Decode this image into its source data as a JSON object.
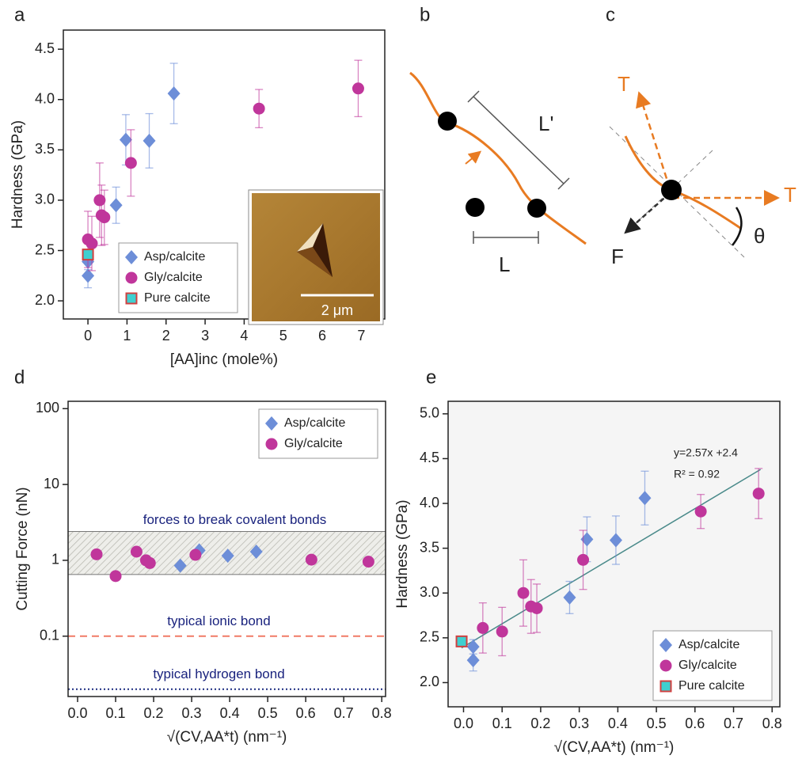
{
  "panel_labels": [
    "a",
    "b",
    "c",
    "d",
    "e"
  ],
  "diagram_b": {
    "labels": [
      "L'",
      "L"
    ]
  },
  "diagram_c": {
    "labels": [
      "T",
      "T",
      "F",
      "θ"
    ]
  },
  "inset": {
    "scale_label": "2 μm"
  },
  "chart_data": [
    {
      "type": "scatter",
      "xlabel": "[AA]inc (mole%)",
      "ylabel": "Hardness (GPa)",
      "xlim": [
        -0.63,
        7.6
      ],
      "ylim": [
        1.82,
        4.69
      ],
      "xticks": [
        0,
        1,
        2,
        3,
        4,
        5,
        6,
        7
      ],
      "yticks": [
        {
          "value": 2.0,
          "label": "2.0"
        },
        {
          "value": 2.5,
          "label": "2.5"
        },
        {
          "value": 3.0,
          "label": "3.0"
        },
        {
          "value": 3.5,
          "label": "3.5"
        },
        {
          "value": 4.0,
          "label": "4.0"
        },
        {
          "value": 4.5,
          "label": "4.5"
        }
      ],
      "legend": "lower left",
      "series": [
        {
          "name": "Asp/calcite",
          "color": "#6d8ed8",
          "marker": "diamond",
          "x": [
            0.0,
            0.0,
            0.72,
            0.97,
            1.57,
            2.2
          ],
          "values": [
            2.25,
            2.39,
            2.95,
            3.6,
            3.59,
            4.06
          ],
          "errors": [
            0.12,
            0.08,
            0.18,
            0.25,
            0.27,
            0.3
          ]
        },
        {
          "name": "Gly/calcite",
          "color": "#c0369b",
          "marker": "circle",
          "x": [
            0.0,
            0.1,
            0.3,
            0.35,
            0.42,
            1.1,
            4.38,
            6.92
          ],
          "values": [
            2.61,
            2.57,
            3.0,
            2.85,
            2.83,
            3.37,
            3.91,
            4.11
          ],
          "errors": [
            0.28,
            0.27,
            0.37,
            0.3,
            0.27,
            0.33,
            0.19,
            0.28
          ]
        },
        {
          "name": "Pure calcite",
          "color": "#3fd0d0",
          "edgecolor": "#d04040",
          "marker": "square",
          "x": [
            0.0
          ],
          "values": [
            2.46
          ],
          "errors": [
            0.05
          ]
        }
      ]
    },
    {
      "type": "scatter",
      "xlabel": "√(CV,AA*t) (nm⁻¹)",
      "ylabel": "Cutting Force (nN)",
      "log_y": true,
      "xlim": [
        -0.025,
        0.81
      ],
      "ylim": [
        0.016,
        125
      ],
      "xticks": [
        {
          "value": 0.0,
          "label": "0.0"
        },
        0.1,
        0.2,
        0.3,
        0.4,
        0.5,
        0.6,
        0.7,
        0.8
      ],
      "yticks": [
        0.1,
        1,
        10,
        100
      ],
      "legend": "upper right",
      "band": {
        "from": 0.65,
        "to": 2.4,
        "label": "forces to break covalent bonds"
      },
      "hlines": [
        {
          "y": 0.1,
          "label": "typical ionic bond",
          "color": "#f07a66",
          "style": "dashed"
        },
        {
          "y": 0.02,
          "label": "typical hydrogen bond",
          "color": "#1a2a80",
          "style": "dotted"
        }
      ],
      "series": [
        {
          "name": "Asp/calcite",
          "color": "#6d8ed8",
          "marker": "diamond",
          "x": [
            0.27,
            0.32,
            0.395,
            0.47
          ],
          "values": [
            0.85,
            1.35,
            1.15,
            1.3
          ]
        },
        {
          "name": "Gly/calcite",
          "color": "#c0369b",
          "marker": "circle",
          "x": [
            0.05,
            0.1,
            0.155,
            0.18,
            0.19,
            0.31,
            0.615,
            0.765
          ],
          "values": [
            1.2,
            0.62,
            1.3,
            1.0,
            0.92,
            1.18,
            1.02,
            0.96
          ]
        }
      ]
    },
    {
      "type": "scatter",
      "xlabel": "√(CV,AA*t) (nm⁻¹)",
      "ylabel": "Hardness (GPa)",
      "xlim": [
        -0.04,
        0.82
      ],
      "ylim": [
        1.73,
        5.14
      ],
      "xticks": [
        {
          "value": 0.0,
          "label": "0.0"
        },
        0.1,
        0.2,
        0.3,
        0.4,
        0.5,
        0.6,
        0.7,
        0.8
      ],
      "yticks": [
        {
          "value": 2.0,
          "label": "2.0"
        },
        {
          "value": 2.5,
          "label": "2.5"
        },
        {
          "value": 3.0,
          "label": "3.0"
        },
        {
          "value": 3.5,
          "label": "3.5"
        },
        {
          "value": 4.0,
          "label": "4.0"
        },
        {
          "value": 4.5,
          "label": "4.5"
        },
        {
          "value": 5.0,
          "label": "5.0"
        }
      ],
      "legend": "lower right",
      "annotations": [
        "y=2.57x +2.4",
        "R² = 0.92"
      ],
      "fit": {
        "slope": 2.57,
        "intercept": 2.4,
        "x": [
          -0.005,
          0.77
        ],
        "color": "#4a8a8a"
      },
      "series": [
        {
          "name": "Asp/calcite",
          "color": "#6d8ed8",
          "marker": "diamond",
          "x": [
            0.025,
            0.025,
            0.275,
            0.32,
            0.395,
            0.47
          ],
          "values": [
            2.25,
            2.4,
            2.95,
            3.6,
            3.59,
            4.06
          ],
          "errors": [
            0.12,
            0.08,
            0.18,
            0.25,
            0.27,
            0.3
          ]
        },
        {
          "name": "Gly/calcite",
          "color": "#c0369b",
          "marker": "circle",
          "x": [
            0.05,
            0.1,
            0.155,
            0.175,
            0.19,
            0.31,
            0.615,
            0.765
          ],
          "values": [
            2.61,
            2.57,
            3.0,
            2.85,
            2.83,
            3.37,
            3.91,
            4.11
          ],
          "errors": [
            0.28,
            0.27,
            0.37,
            0.3,
            0.27,
            0.33,
            0.19,
            0.28
          ]
        },
        {
          "name": "Pure calcite",
          "color": "#3fd0d0",
          "edgecolor": "#d04040",
          "marker": "square",
          "x": [
            -0.005
          ],
          "values": [
            2.46
          ],
          "errors": [
            0.05
          ]
        }
      ]
    }
  ]
}
